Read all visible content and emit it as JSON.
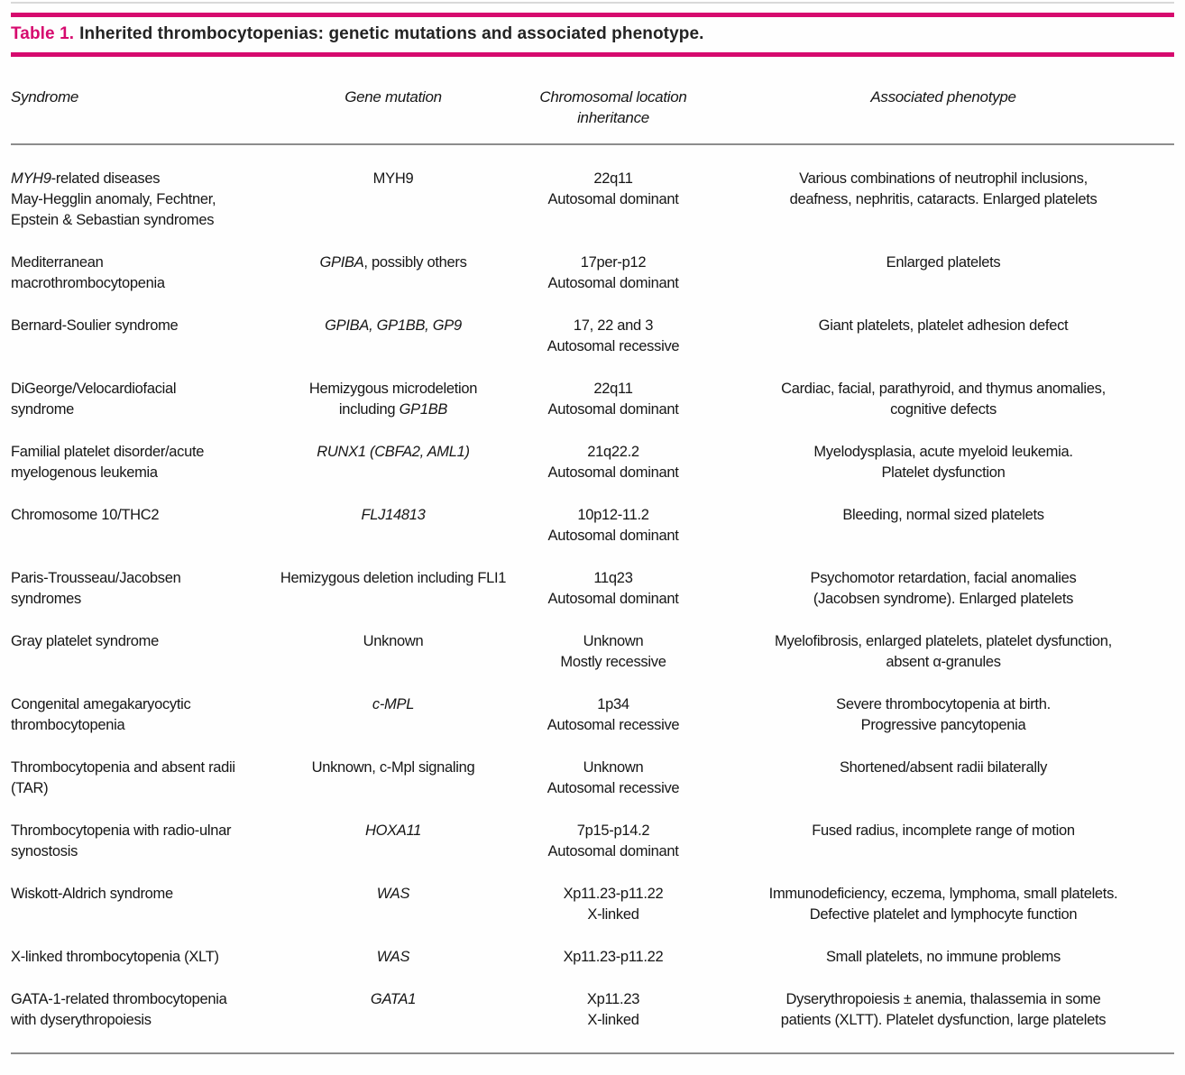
{
  "accent_color": "#d60a6e",
  "title": {
    "label": "Table 1.",
    "text": "Inherited thrombocytopenias: genetic mutations and associated phenotype."
  },
  "columns": {
    "syndrome": "Syndrome",
    "gene": "Gene mutation",
    "location": "Chromosomal location\ninheritance",
    "phenotype": "Associated phenotype"
  },
  "rows": [
    {
      "syndrome": [
        {
          "t": "MYH9",
          "i": true
        },
        {
          "t": "-related diseases\nMay-Hegglin anomaly, Fechtner,\nEpstein & Sebastian syndromes"
        }
      ],
      "gene": [
        {
          "t": "MYH9"
        }
      ],
      "location": "22q11\nAutosomal dominant",
      "phenotype": "Various combinations of neutrophil inclusions,\ndeafness, nephritis, cataracts. Enlarged platelets"
    },
    {
      "syndrome": [
        {
          "t": "Mediterranean\nmacrothrombocytopenia"
        }
      ],
      "gene": [
        {
          "t": "GPIBA",
          "i": true
        },
        {
          "t": ", possibly others"
        }
      ],
      "location": "17per-p12\nAutosomal dominant",
      "phenotype": "Enlarged platelets"
    },
    {
      "syndrome": [
        {
          "t": "Bernard-Soulier syndrome"
        }
      ],
      "gene": [
        {
          "t": "GPIBA, GP1BB, GP9",
          "i": true
        }
      ],
      "location": "17, 22 and 3\nAutosomal recessive",
      "phenotype": "Giant platelets, platelet adhesion defect"
    },
    {
      "syndrome": [
        {
          "t": "DiGeorge/Velocardiofacial\nsyndrome"
        }
      ],
      "gene": [
        {
          "t": "Hemizygous microdeletion\nincluding "
        },
        {
          "t": "GP1BB",
          "i": true
        }
      ],
      "location": "22q11\nAutosomal dominant",
      "phenotype": "Cardiac, facial, parathyroid, and thymus anomalies,\ncognitive defects"
    },
    {
      "syndrome": [
        {
          "t": "Familial platelet disorder/acute\nmyelogenous leukemia"
        }
      ],
      "gene": [
        {
          "t": "RUNX1 (CBFA2, AML1)",
          "i": true
        }
      ],
      "location": "21q22.2\nAutosomal dominant",
      "phenotype": "Myelodysplasia, acute myeloid leukemia.\nPlatelet dysfunction"
    },
    {
      "syndrome": [
        {
          "t": "Chromosome 10/THC2"
        }
      ],
      "gene": [
        {
          "t": "FLJ14813",
          "i": true
        }
      ],
      "location": "10p12-11.2\nAutosomal dominant",
      "phenotype": "Bleeding, normal sized platelets"
    },
    {
      "syndrome": [
        {
          "t": "Paris-Trousseau/Jacobsen\nsyndromes"
        }
      ],
      "gene": [
        {
          "t": "Hemizygous deletion including FLI1"
        }
      ],
      "location": "11q23\nAutosomal dominant",
      "phenotype": "Psychomotor retardation, facial anomalies\n(Jacobsen syndrome). Enlarged platelets"
    },
    {
      "syndrome": [
        {
          "t": "Gray platelet syndrome"
        }
      ],
      "gene": [
        {
          "t": "Unknown"
        }
      ],
      "location": "Unknown\nMostly recessive",
      "phenotype": "Myelofibrosis, enlarged platelets, platelet dysfunction,\nabsent α-granules"
    },
    {
      "syndrome": [
        {
          "t": "Congenital amegakaryocytic\nthrombocytopenia"
        }
      ],
      "gene": [
        {
          "t": "c-MPL",
          "i": true
        }
      ],
      "location": "1p34\nAutosomal recessive",
      "phenotype": "Severe thrombocytopenia at birth.\nProgressive pancytopenia"
    },
    {
      "syndrome": [
        {
          "t": "Thrombocytopenia and absent radii\n(TAR)"
        }
      ],
      "gene": [
        {
          "t": "Unknown, c-Mpl signaling"
        }
      ],
      "location": "Unknown\nAutosomal recessive",
      "phenotype": "Shortened/absent radii bilaterally"
    },
    {
      "syndrome": [
        {
          "t": "Thrombocytopenia with radio-ulnar\nsynostosis"
        }
      ],
      "gene": [
        {
          "t": "HOXA11",
          "i": true
        }
      ],
      "location": "7p15-p14.2\nAutosomal dominant",
      "phenotype": "Fused radius, incomplete range of motion"
    },
    {
      "syndrome": [
        {
          "t": "Wiskott-Aldrich syndrome"
        }
      ],
      "gene": [
        {
          "t": "WAS",
          "i": true
        }
      ],
      "location": "Xp11.23-p11.22\nX-linked",
      "phenotype": "Immunodeficiency, eczema, lymphoma,  small platelets.\nDefective platelet and lymphocyte function"
    },
    {
      "syndrome": [
        {
          "t": "X-linked thrombocytopenia (XLT)"
        }
      ],
      "gene": [
        {
          "t": "WAS",
          "i": true
        }
      ],
      "location": "Xp11.23-p11.22",
      "phenotype": "Small platelets, no immune problems"
    },
    {
      "syndrome": [
        {
          "t": "GATA-1-related thrombocytopenia\nwith dyserythropoiesis"
        }
      ],
      "gene": [
        {
          "t": "GATA1",
          "i": true
        }
      ],
      "location": "Xp11.23\nX-linked",
      "phenotype": "Dyserythropoiesis ± anemia, thalassemia in some\npatients (XLTT). Platelet dysfunction, large platelets"
    }
  ]
}
